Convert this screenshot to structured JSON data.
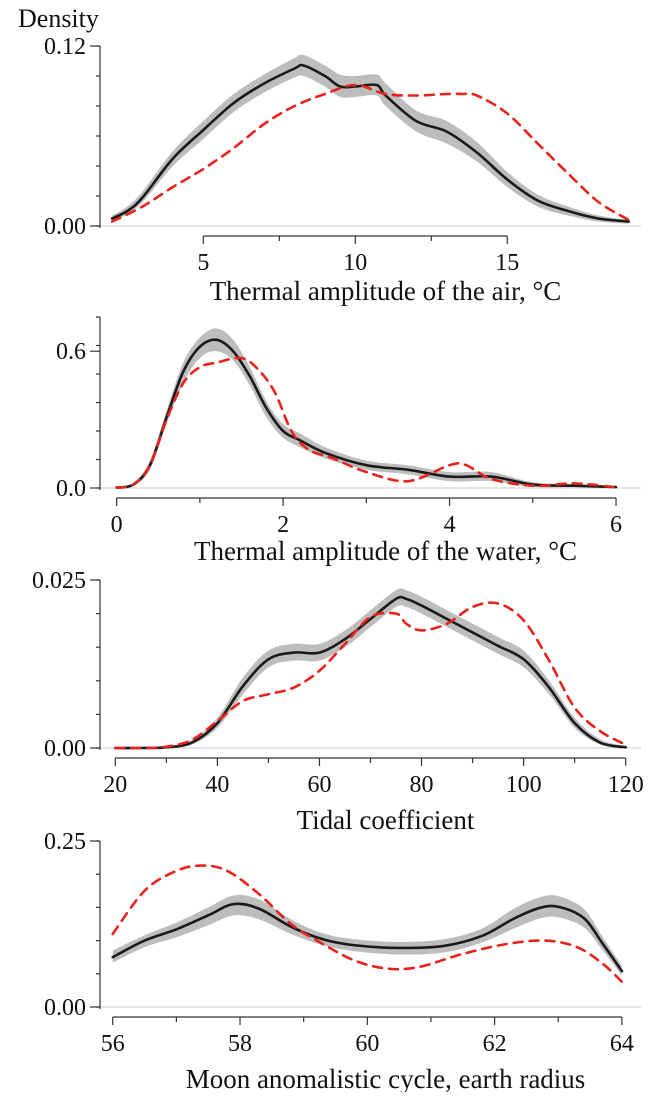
{
  "figure": {
    "y_label": "Density"
  },
  "style": {
    "observed_color": "#1a1a1a",
    "band_color": "#bdbdbd",
    "reference_color": "#e8221c",
    "frame_color": "#333333",
    "baseline_color": "#cccccc"
  },
  "chart_data": [
    {
      "type": "line",
      "xlabel": "Thermal amplitude of the air, °C",
      "ylabel": "Density",
      "xlim": [
        1.6,
        19.4
      ],
      "ylim": [
        0,
        0.12
      ],
      "xticks": [
        5,
        10,
        15
      ],
      "xtick_labels": [
        "5",
        "10",
        "15"
      ],
      "yticks": [
        0,
        0.12
      ],
      "ytick_labels": [
        "0.00",
        "0.12"
      ],
      "yminor_count": 6,
      "series": [
        {
          "style": "band",
          "x": [
            2,
            2.5,
            3,
            4,
            5,
            6,
            7,
            8,
            8.3,
            9,
            9.5,
            10,
            10.7,
            11,
            12,
            13,
            14,
            15,
            16,
            17,
            18,
            19
          ],
          "lower": [
            0.003,
            0.008,
            0.016,
            0.04,
            0.058,
            0.076,
            0.089,
            0.099,
            0.1,
            0.093,
            0.086,
            0.086,
            0.087,
            0.08,
            0.063,
            0.055,
            0.043,
            0.026,
            0.013,
            0.007,
            0.003,
            0.0015
          ],
          "upper": [
            0.007,
            0.013,
            0.023,
            0.05,
            0.07,
            0.088,
            0.101,
            0.112,
            0.114,
            0.107,
            0.101,
            0.1,
            0.101,
            0.095,
            0.077,
            0.07,
            0.056,
            0.036,
            0.021,
            0.013,
            0.007,
            0.004
          ]
        },
        {
          "style": "solid",
          "x": [
            2,
            2.5,
            3,
            4,
            5,
            6,
            7,
            8,
            8.3,
            9,
            9.5,
            10,
            10.7,
            11,
            12,
            13,
            14,
            15,
            16,
            17,
            18,
            19
          ],
          "y": [
            0.005,
            0.01,
            0.019,
            0.045,
            0.064,
            0.082,
            0.095,
            0.105,
            0.107,
            0.1,
            0.093,
            0.093,
            0.094,
            0.087,
            0.07,
            0.063,
            0.049,
            0.031,
            0.017,
            0.01,
            0.005,
            0.003
          ]
        },
        {
          "style": "dashed",
          "x": [
            2,
            3,
            4,
            5,
            6,
            7,
            8,
            9,
            10,
            11,
            12,
            13,
            13.5,
            14,
            15,
            16,
            17,
            18,
            19
          ],
          "y": [
            0.003,
            0.013,
            0.026,
            0.038,
            0.052,
            0.068,
            0.08,
            0.088,
            0.094,
            0.088,
            0.087,
            0.088,
            0.088,
            0.087,
            0.075,
            0.055,
            0.035,
            0.016,
            0.004
          ]
        }
      ]
    },
    {
      "type": "line",
      "xlabel": "Thermal amplitude of the water, °C",
      "ylabel": "Density",
      "xlim": [
        -0.2,
        6.3
      ],
      "ylim": [
        0,
        0.75
      ],
      "xticks": [
        0,
        2,
        4,
        6
      ],
      "xtick_labels": [
        "0",
        "2",
        "4",
        "6"
      ],
      "yticks": [
        0,
        0.6
      ],
      "ytick_labels": [
        "0.0",
        "0.6"
      ],
      "yminor_count": 6,
      "series": [
        {
          "style": "band",
          "x": [
            0,
            0.2,
            0.4,
            0.6,
            0.8,
            1.0,
            1.2,
            1.4,
            1.6,
            1.8,
            2.0,
            2.2,
            2.5,
            3,
            3.5,
            4,
            4.5,
            5,
            5.5,
            6
          ],
          "lower": [
            0,
            0.008,
            0.08,
            0.28,
            0.46,
            0.57,
            0.6,
            0.56,
            0.45,
            0.31,
            0.22,
            0.18,
            0.13,
            0.08,
            0.06,
            0.03,
            0.03,
            0.005,
            0.004,
            0.001
          ],
          "upper": [
            0.006,
            0.022,
            0.12,
            0.34,
            0.55,
            0.66,
            0.7,
            0.65,
            0.53,
            0.38,
            0.28,
            0.24,
            0.18,
            0.12,
            0.1,
            0.07,
            0.07,
            0.025,
            0.016,
            0.008
          ]
        },
        {
          "style": "solid",
          "x": [
            0,
            0.2,
            0.4,
            0.6,
            0.8,
            1.0,
            1.2,
            1.4,
            1.6,
            1.8,
            2.0,
            2.2,
            2.5,
            3,
            3.5,
            4,
            4.5,
            5,
            5.5,
            6
          ],
          "y": [
            0.002,
            0.015,
            0.1,
            0.31,
            0.51,
            0.62,
            0.65,
            0.6,
            0.49,
            0.35,
            0.25,
            0.21,
            0.155,
            0.1,
            0.08,
            0.05,
            0.05,
            0.015,
            0.01,
            0.004
          ]
        },
        {
          "style": "dashed",
          "x": [
            0,
            0.2,
            0.4,
            0.6,
            0.8,
            1.0,
            1.2,
            1.5,
            1.7,
            1.9,
            2.1,
            2.3,
            2.6,
            3,
            3.5,
            4,
            4.2,
            4.5,
            5,
            5.5,
            6
          ],
          "y": [
            0.002,
            0.015,
            0.1,
            0.3,
            0.46,
            0.53,
            0.55,
            0.57,
            0.52,
            0.42,
            0.25,
            0.17,
            0.13,
            0.07,
            0.03,
            0.1,
            0.1,
            0.04,
            0.01,
            0.02,
            0.003
          ]
        }
      ]
    },
    {
      "type": "line",
      "xlabel": "Tidal coefficient",
      "ylabel": "Density",
      "xlim": [
        17,
        123
      ],
      "ylim": [
        0,
        0.025
      ],
      "xticks": [
        20,
        40,
        60,
        80,
        100,
        120
      ],
      "xtick_labels": [
        "20",
        "40",
        "60",
        "80",
        "100",
        "120"
      ],
      "yticks": [
        0,
        0.025
      ],
      "ytick_labels": [
        "0.00",
        "0.025"
      ],
      "yminor_count": 5,
      "series": [
        {
          "style": "band",
          "x": [
            20,
            25,
            30,
            35,
            40,
            45,
            50,
            55,
            60,
            65,
            70,
            75,
            77,
            80,
            85,
            90,
            95,
            100,
            105,
            110,
            115,
            120
          ],
          "lower": [
            0,
            0,
            0,
            0.0005,
            0.003,
            0.008,
            0.012,
            0.013,
            0.013,
            0.015,
            0.018,
            0.021,
            0.021,
            0.02,
            0.018,
            0.016,
            0.014,
            0.012,
            0.008,
            0.003,
            0.0005,
            0
          ],
          "upper": [
            0.0001,
            0.0001,
            0.0003,
            0.0012,
            0.0045,
            0.0105,
            0.0145,
            0.0155,
            0.0155,
            0.0175,
            0.0205,
            0.0235,
            0.0235,
            0.0225,
            0.0205,
            0.0185,
            0.0165,
            0.0145,
            0.01,
            0.0045,
            0.0013,
            0.0003
          ]
        },
        {
          "style": "solid",
          "x": [
            20,
            25,
            30,
            35,
            40,
            45,
            50,
            55,
            60,
            65,
            70,
            75,
            77,
            80,
            85,
            90,
            95,
            100,
            105,
            110,
            115,
            120
          ],
          "y": [
            0,
            0,
            0.0001,
            0.0008,
            0.0037,
            0.0092,
            0.0132,
            0.0142,
            0.0142,
            0.0162,
            0.0192,
            0.0222,
            0.0222,
            0.0212,
            0.0192,
            0.0172,
            0.0152,
            0.0132,
            0.009,
            0.0037,
            0.0008,
            0.0001
          ]
        },
        {
          "style": "dashed",
          "x": [
            20,
            25,
            30,
            35,
            40,
            45,
            50,
            55,
            60,
            65,
            70,
            75,
            77,
            80,
            85,
            90,
            95,
            100,
            105,
            110,
            115,
            120
          ],
          "y": [
            0,
            0,
            0.0002,
            0.0012,
            0.004,
            0.007,
            0.008,
            0.009,
            0.0115,
            0.0155,
            0.0195,
            0.02,
            0.0185,
            0.0175,
            0.0185,
            0.021,
            0.0215,
            0.019,
            0.013,
            0.006,
            0.0025,
            0.0005
          ]
        }
      ]
    },
    {
      "type": "line",
      "xlabel": "Moon anomalistic cycle, earth radius",
      "ylabel": "Density",
      "xlim": [
        55.8,
        64.3
      ],
      "ylim": [
        0,
        0.25
      ],
      "xticks": [
        56,
        58,
        60,
        62,
        64
      ],
      "xtick_labels": [
        "56",
        "58",
        "60",
        "62",
        "64"
      ],
      "yticks": [
        0,
        0.25
      ],
      "ytick_labels": [
        "0.00",
        "0.25"
      ],
      "yminor_count": 5,
      "series": [
        {
          "style": "band",
          "x": [
            56,
            56.5,
            57,
            57.5,
            57.9,
            58.3,
            58.8,
            59.3,
            59.8,
            60.5,
            61.2,
            61.8,
            62.3,
            62.7,
            63,
            63.4,
            63.7,
            64
          ],
          "lower": [
            0.067,
            0.09,
            0.105,
            0.123,
            0.138,
            0.132,
            0.11,
            0.093,
            0.084,
            0.079,
            0.082,
            0.097,
            0.118,
            0.133,
            0.135,
            0.12,
            0.085,
            0.047
          ],
          "upper": [
            0.085,
            0.108,
            0.127,
            0.15,
            0.168,
            0.162,
            0.132,
            0.111,
            0.102,
            0.098,
            0.102,
            0.118,
            0.148,
            0.165,
            0.167,
            0.148,
            0.105,
            0.062
          ]
        },
        {
          "style": "solid",
          "x": [
            56,
            56.5,
            57,
            57.5,
            57.9,
            58.3,
            58.8,
            59.3,
            59.8,
            60.5,
            61.2,
            61.8,
            62.3,
            62.7,
            63,
            63.4,
            63.7,
            64
          ],
          "y": [
            0.075,
            0.1,
            0.117,
            0.138,
            0.155,
            0.148,
            0.121,
            0.102,
            0.093,
            0.089,
            0.092,
            0.107,
            0.133,
            0.149,
            0.151,
            0.134,
            0.095,
            0.054
          ]
        },
        {
          "style": "dashed",
          "x": [
            56,
            56.5,
            57,
            57.4,
            57.8,
            58.3,
            58.8,
            59.3,
            59.8,
            60.3,
            60.8,
            61.5,
            62.2,
            62.8,
            63.3,
            63.7,
            64
          ],
          "y": [
            0.11,
            0.175,
            0.205,
            0.213,
            0.205,
            0.17,
            0.125,
            0.095,
            0.07,
            0.058,
            0.06,
            0.08,
            0.095,
            0.1,
            0.09,
            0.065,
            0.038
          ]
        }
      ]
    }
  ]
}
